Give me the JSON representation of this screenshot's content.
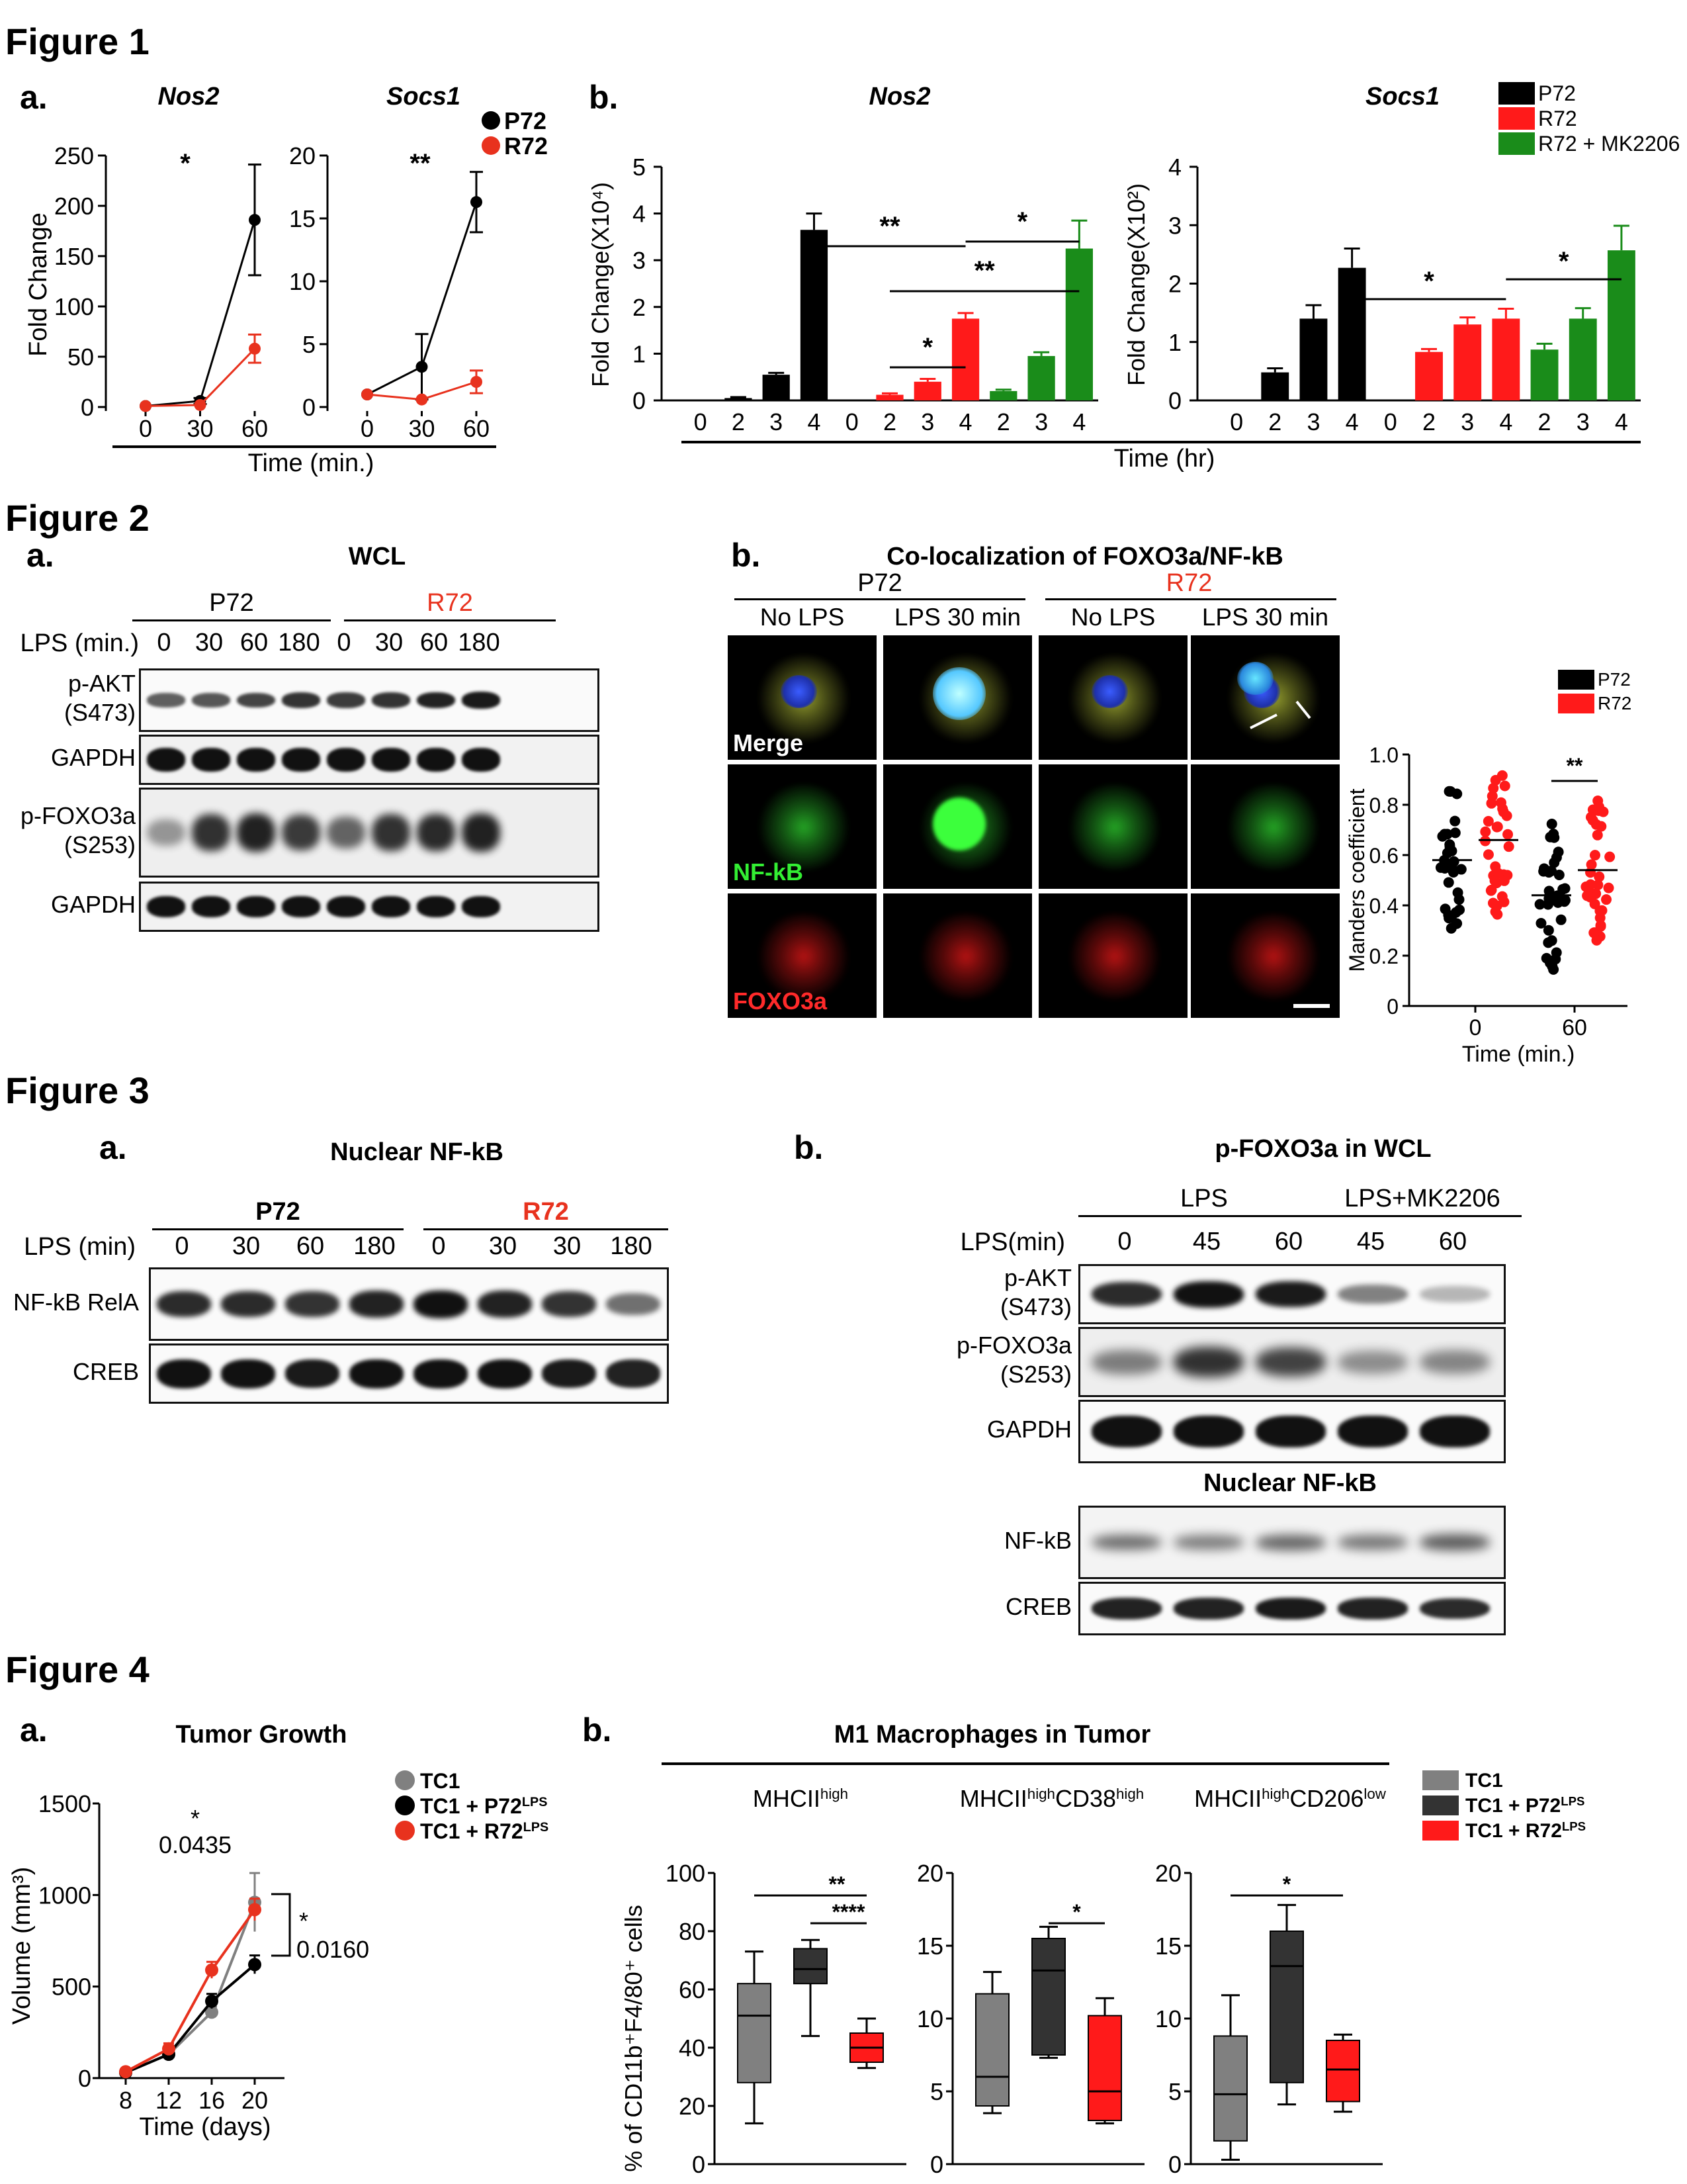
{
  "figure1": {
    "title": "Figure 1",
    "panel_a": {
      "label": "a.",
      "xlabel": "Time (min.)",
      "charts": [
        {
          "type": "line",
          "title": "Nos2",
          "ylabel": "Fold Change",
          "x": [
            0,
            30,
            60
          ],
          "ylim": [
            0,
            250
          ],
          "yticks": [
            0,
            50,
            100,
            150,
            200,
            250
          ],
          "series": [
            {
              "name": "P72",
              "color": "#000000",
              "values": [
                1,
                6,
                186
              ]
            },
            {
              "name": "R72",
              "color": "#e8321e",
              "values": [
                1,
                2,
                58
              ]
            }
          ],
          "significance": "*"
        },
        {
          "type": "line",
          "title": "Socs1",
          "ylabel": "",
          "x": [
            0,
            30,
            60
          ],
          "ylim": [
            0,
            20
          ],
          "yticks": [
            0,
            5,
            10,
            15,
            20
          ],
          "series": [
            {
              "name": "P72",
              "color": "#000000",
              "values": [
                1,
                3.2,
                16.3
              ]
            },
            {
              "name": "R72",
              "color": "#e8321e",
              "values": [
                1,
                0.6,
                2
              ]
            }
          ],
          "significance": "**"
        }
      ],
      "legend": [
        {
          "name": "P72",
          "color": "#000000"
        },
        {
          "name": "R72",
          "color": "#e8321e"
        }
      ]
    },
    "panel_b": {
      "label": "b.",
      "xlabel": "Time (hr)",
      "legend": [
        {
          "name": "P72",
          "color": "#000000"
        },
        {
          "name": "R72",
          "color": "#ff1a1a"
        },
        {
          "name": "R72 + MK2206",
          "color": "#1a8c1a"
        }
      ],
      "charts": [
        {
          "type": "bar",
          "title": "Nos2",
          "ylabel": "Fold Change(X10⁴)",
          "ylim": [
            0,
            5
          ],
          "yticks": [
            0,
            1,
            2,
            3,
            4,
            5
          ],
          "categories": [
            "0",
            "2",
            "3",
            "4",
            "0",
            "2",
            "3",
            "4",
            "2",
            "3",
            "4"
          ],
          "values": [
            0,
            0.05,
            0.55,
            3.65,
            0,
            0.12,
            0.4,
            1.75,
            0.2,
            0.95,
            3.25
          ],
          "colors": [
            "#000000",
            "#000000",
            "#000000",
            "#000000",
            "#ff1a1a",
            "#ff1a1a",
            "#ff1a1a",
            "#ff1a1a",
            "#1a8c1a",
            "#1a8c1a",
            "#1a8c1a"
          ],
          "errors": [
            0,
            0.02,
            0.04,
            0.35,
            0,
            0.03,
            0.06,
            0.12,
            0.03,
            0.08,
            0.6
          ],
          "significance": [
            "**",
            "*",
            "**",
            "*"
          ]
        },
        {
          "type": "bar",
          "title": "Socs1",
          "ylabel": "Fold Change(X10²)",
          "ylim": [
            0,
            4
          ],
          "yticks": [
            0,
            1,
            2,
            3,
            4
          ],
          "categories": [
            "0",
            "2",
            "3",
            "4",
            "0",
            "2",
            "3",
            "4",
            "2",
            "3",
            "4"
          ],
          "values": [
            0,
            0.48,
            1.4,
            2.27,
            0,
            0.83,
            1.3,
            1.4,
            0.87,
            1.4,
            2.57
          ],
          "colors": [
            "#000000",
            "#000000",
            "#000000",
            "#000000",
            "#ff1a1a",
            "#ff1a1a",
            "#ff1a1a",
            "#ff1a1a",
            "#1a8c1a",
            "#1a8c1a",
            "#1a8c1a"
          ],
          "errors": [
            0,
            0.07,
            0.23,
            0.33,
            0,
            0.05,
            0.12,
            0.17,
            0.1,
            0.18,
            0.42
          ],
          "significance": [
            "*",
            "*"
          ]
        }
      ]
    }
  },
  "figure2": {
    "title": "Figure 2",
    "panel_a": {
      "label": "a.",
      "title": "WCL",
      "group1": "P72",
      "group2": "R72",
      "lps_label": "LPS (min.)",
      "lanes": [
        "0",
        "30",
        "60",
        "180",
        "0",
        "30",
        "60",
        "180"
      ],
      "rows": [
        "p-AKT\n(S473)",
        "GAPDH",
        "p-FOXO3a\n(S253)",
        "GAPDH"
      ]
    },
    "panel_b": {
      "label": "b.",
      "title": "Co-localization of FOXO3a/NF-kB",
      "group1": "P72",
      "group2": "R72",
      "columns": [
        "No LPS",
        "LPS 30 min",
        "No LPS",
        "LPS 30 min"
      ],
      "rows": [
        "Merge",
        "NF-kB",
        "FOXO3a"
      ],
      "scatter": {
        "type": "scatter",
        "ylabel": "Manders coefficient",
        "xlabel": "Time (min.)",
        "categories": [
          "0",
          "60"
        ],
        "ylim": [
          0,
          1.0
        ],
        "yticks": [
          "0",
          "0.2",
          "0.4",
          "0.6",
          "0.8",
          "1.0"
        ],
        "legend": [
          {
            "name": "P72",
            "color": "#000000"
          },
          {
            "name": "R72",
            "color": "#ff1a1a"
          }
        ],
        "means": [
          {
            "category": "0",
            "series": "P72",
            "mean": 0.58
          },
          {
            "category": "0",
            "series": "R72",
            "mean": 0.66
          },
          {
            "category": "60",
            "series": "P72",
            "mean": 0.44
          },
          {
            "category": "60",
            "series": "R72",
            "mean": 0.54
          }
        ],
        "significance": "**"
      }
    }
  },
  "figure3": {
    "title": "Figure 3",
    "panel_a": {
      "label": "a.",
      "title": "Nuclear NF-kB",
      "group1": "P72",
      "group2": "R72",
      "lps_label": "LPS (min)",
      "lanes": [
        "0",
        "30",
        "60",
        "180",
        "0",
        "30",
        "30",
        "180"
      ],
      "rows": [
        "NF-kB RelA",
        "CREB"
      ]
    },
    "panel_b": {
      "label": "b.",
      "title": "p-FOXO3a in WCL",
      "group1": "LPS",
      "group2": "LPS+MK2206",
      "lps_label": "LPS(min)",
      "lanes": [
        "0",
        "45",
        "60",
        "45",
        "60"
      ],
      "rows": [
        "p-AKT\n(S473)",
        "p-FOXO3a\n(S253)",
        "GAPDH"
      ],
      "subtitle": "Nuclear NF-kB",
      "rows2": [
        "NF-kB",
        "CREB"
      ]
    }
  },
  "figure4": {
    "title": "Figure 4",
    "panel_a": {
      "label": "a.",
      "title": "Tumor Growth",
      "chart": {
        "type": "line",
        "xlabel": "Time (days)",
        "ylabel": "Volume (mm³)",
        "x": [
          8,
          12,
          16,
          20
        ],
        "ylim": [
          0,
          1500
        ],
        "yticks": [
          0,
          500,
          1000,
          1500
        ],
        "series": [
          {
            "name": "TC1",
            "color": "#808080",
            "values": [
              30,
              130,
              360,
              960
            ]
          },
          {
            "name": "TC1 + P72LPS",
            "color": "#000000",
            "values": [
              30,
              130,
              420,
              620
            ]
          },
          {
            "name": "TC1 + R72LPS",
            "color": "#e8321e",
            "values": [
              35,
              160,
              590,
              920
            ]
          }
        ],
        "annotation1_star": "*",
        "annotation1_p": "0.0435",
        "annotation2_star": "*",
        "annotation2_p": "0.0160"
      },
      "legend": [
        {
          "name": "TC1",
          "sup": "",
          "color": "#808080"
        },
        {
          "name": "TC1 + P72",
          "sup": "LPS",
          "color": "#000000"
        },
        {
          "name": "TC1 + R72",
          "sup": "LPS",
          "color": "#e8321e"
        }
      ]
    },
    "panel_b": {
      "label": "b.",
      "title": "M1 Macrophages in Tumor",
      "ylabel": "% of CD11b⁺F4/80⁺ cells",
      "legend": [
        {
          "name": "TC1",
          "sup": "",
          "color": "#808080"
        },
        {
          "name": "TC1 + P72",
          "sup": "LPS",
          "color": "#333333"
        },
        {
          "name": "TC1 + R72",
          "sup": "LPS",
          "color": "#ff1a1a"
        }
      ],
      "charts": [
        {
          "type": "box",
          "title_main": "MHCII",
          "title_sup": "high",
          "title_rest": "",
          "title_sup2": "",
          "ylim": [
            0,
            100
          ],
          "yticks": [
            0,
            20,
            40,
            60,
            80,
            100
          ],
          "boxes": [
            {
              "min": 14,
              "q1": 28,
              "median": 51,
              "q3": 62,
              "max": 73
            },
            {
              "min": 44,
              "q1": 62,
              "median": 67,
              "q3": 74,
              "max": 77
            },
            {
              "min": 33,
              "q1": 35,
              "median": 40,
              "q3": 45,
              "max": 50
            }
          ],
          "significance": [
            "**",
            "****"
          ]
        },
        {
          "type": "box",
          "title_main": "MHCII",
          "title_sup": "high",
          "title_rest": "CD38",
          "title_sup2": "high",
          "ylim": [
            0,
            20
          ],
          "yticks": [
            0,
            5,
            10,
            15,
            20
          ],
          "boxes": [
            {
              "min": 3.5,
              "q1": 4,
              "median": 6,
              "q3": 11.7,
              "max": 13.2
            },
            {
              "min": 7.3,
              "q1": 7.5,
              "median": 13.3,
              "q3": 15.5,
              "max": 16.3
            },
            {
              "min": 2.8,
              "q1": 3,
              "median": 5,
              "q3": 10.2,
              "max": 11.4
            }
          ],
          "significance": [
            "*"
          ]
        },
        {
          "type": "box",
          "title_main": "MHCII",
          "title_sup": "high",
          "title_rest": "CD206",
          "title_sup2": "low",
          "ylim": [
            0,
            20
          ],
          "yticks": [
            0,
            5,
            10,
            15,
            20
          ],
          "boxes": [
            {
              "min": 0.3,
              "q1": 1.6,
              "median": 4.8,
              "q3": 8.8,
              "max": 11.6
            },
            {
              "min": 4.1,
              "q1": 5.6,
              "median": 13.6,
              "q3": 16,
              "max": 17.8
            },
            {
              "min": 3.6,
              "q1": 4.3,
              "median": 6.5,
              "q3": 8.5,
              "max": 8.9
            }
          ],
          "significance": [
            "*"
          ]
        }
      ]
    }
  }
}
